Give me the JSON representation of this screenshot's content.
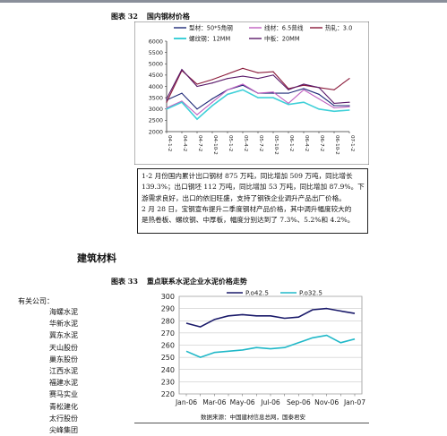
{
  "fig32": {
    "number": "图表 32",
    "title": "国内钢材价格",
    "legend": [
      "型材：50*5角钢",
      "线材：6.5普线",
      "热轧：3.0",
      "螺纹钢：12MM",
      "中板：20MM"
    ],
    "y_ticks": [
      "6000",
      "5500",
      "5000",
      "4500",
      "4000",
      "3500",
      "3000",
      "2500",
      "2000"
    ],
    "x_ticks": [
      "04-1-2",
      "04-4-2",
      "04-7-2",
      "04-10-2",
      "05-1-2",
      "05-4-2",
      "05-7-2",
      "05-10-2",
      "06-1-2",
      "06-4-2",
      "06-7-2",
      "06-10-2",
      "07-1-2"
    ]
  },
  "note": {
    "lines": [
      "1-2 月份国内累计出口钢材 875 万吨，同比增加 509 万吨，同比增长",
      "139.3%；出口钢坯 112 万吨，同比增加 53 万吨，同比增加 87.9%。下",
      "游需求良好，出口的依旧旺盛，支持了钢铁企业调升产品出厂价格。",
      "2 月 28 日，宝钢宣布提升二季度钢材产品价格，其中调升幅度较大的",
      "是热卷板、螺纹钢、中厚板，幅度分别达到了 7.3%、5.2%和 4.2%。"
    ]
  },
  "section_title": "建筑材料",
  "related": {
    "heading": "有关公司：",
    "companies": [
      "海螺水泥",
      "华新水泥",
      "冀东水泥",
      "天山股份",
      "巢东股份",
      "江西水泥",
      "福建水泥",
      "赛马实业",
      "青松建化",
      "太行股份",
      "尖峰集团"
    ]
  },
  "fig33": {
    "number": "图表 33",
    "title": "重点联系水泥企业水泥价格走势",
    "source": "数据来源：中国建材信息总网，国泰君安"
  },
  "colors": {
    "angle_steel": "#1f2a78",
    "wire_rod": "#c060c0",
    "hot_roll": "#8a1a3a",
    "rebar": "#3fd0d8",
    "plate": "#5a1a6a",
    "p425": "#1a1a6a",
    "p325": "#20b8c8"
  },
  "chart_data": [
    {
      "type": "line",
      "title": "国内钢材价格",
      "x": [
        "04-1-2",
        "04-4-2",
        "04-7-2",
        "04-10-2",
        "05-1-2",
        "05-4-2",
        "05-7-2",
        "05-10-2",
        "06-1-2",
        "06-4-2",
        "06-7-2",
        "06-10-2",
        "07-1-2"
      ],
      "ylim": [
        2000,
        6000
      ],
      "series": [
        {
          "name": "型材：50*5角钢",
          "values": [
            3400,
            3700,
            3000,
            3450,
            3850,
            4050,
            3700,
            3700,
            3700,
            3900,
            3650,
            3150,
            3150
          ]
        },
        {
          "name": "线材：6.5普线",
          "values": [
            3050,
            3350,
            2750,
            3300,
            3850,
            4100,
            3700,
            3750,
            3250,
            3850,
            3450,
            3050,
            3100
          ]
        },
        {
          "name": "热轧：3.0",
          "values": [
            3300,
            4700,
            4100,
            4300,
            4550,
            4800,
            4600,
            4650,
            3900,
            4050,
            3950,
            3850,
            4350
          ]
        },
        {
          "name": "螺纹钢：12MM",
          "values": [
            3000,
            3300,
            2550,
            3150,
            3650,
            3850,
            3500,
            3500,
            3200,
            3300,
            3000,
            2900,
            2950
          ]
        },
        {
          "name": "中板：20MM",
          "values": [
            3450,
            4750,
            4000,
            4150,
            4350,
            4450,
            4350,
            4500,
            3850,
            4100,
            3950,
            3250,
            3300
          ]
        }
      ],
      "grid": false,
      "legend": "top"
    },
    {
      "type": "line",
      "categories": [
        "Jan-06",
        "Feb-06",
        "Mar-06",
        "Apr-06",
        "May-06",
        "Jun-06",
        "Jul-06",
        "Aug-06",
        "Sep-06",
        "Oct-06",
        "Nov-06",
        "Dec-06",
        "Jan-07"
      ],
      "x_tick_labels": [
        "Jan-06",
        "Mar-06",
        "May-06",
        "Jul-06",
        "Sep-06",
        "Nov-06",
        "Jan-07"
      ],
      "ylim": [
        220,
        300
      ],
      "y_ticks": [
        220,
        230,
        240,
        250,
        260,
        270,
        280,
        290,
        300
      ],
      "series": [
        {
          "name": "P.o42.5",
          "values": [
            278,
            275,
            281,
            284,
            285,
            284,
            284,
            282,
            283,
            289,
            290,
            288,
            286
          ]
        },
        {
          "name": "P.o32.5",
          "values": [
            255,
            250,
            254,
            255,
            256,
            258,
            257,
            258,
            262,
            266,
            268,
            262,
            265
          ]
        }
      ],
      "grid": true,
      "legend": "top"
    }
  ]
}
